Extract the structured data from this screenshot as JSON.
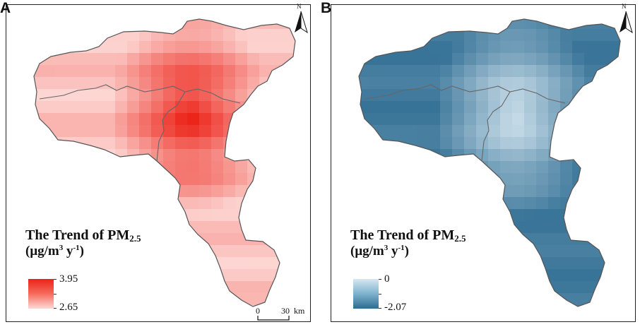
{
  "panels": [
    {
      "label": "A",
      "legend": {
        "title_main": "The Trend of PM",
        "title_sub": "2.5",
        "unit_prefix": "(μg/m",
        "unit_sup1": "3",
        "unit_mid": " y",
        "unit_sup2": "-1",
        "unit_suffix": ")",
        "max_label": "3.95",
        "min_label": "2.65"
      },
      "colors": {
        "high": "#ec2318",
        "low": "#fdd9d6"
      }
    },
    {
      "label": "B",
      "legend": {
        "title_main": "The Trend of PM",
        "title_sub": "2.5",
        "unit_prefix": "(μg/m",
        "unit_sup1": "3",
        "unit_mid": " y",
        "unit_sup2": "-1",
        "unit_suffix": ")",
        "max_label": "0",
        "min_label": "-2.07"
      },
      "colors": {
        "high": "#d6e7f1",
        "low": "#2c6b91"
      }
    }
  ],
  "north_arrow": {
    "letter": "N",
    "icon": "north-arrow-icon"
  },
  "scale_bar": {
    "start": "0",
    "end": "30",
    "unit": "km"
  }
}
